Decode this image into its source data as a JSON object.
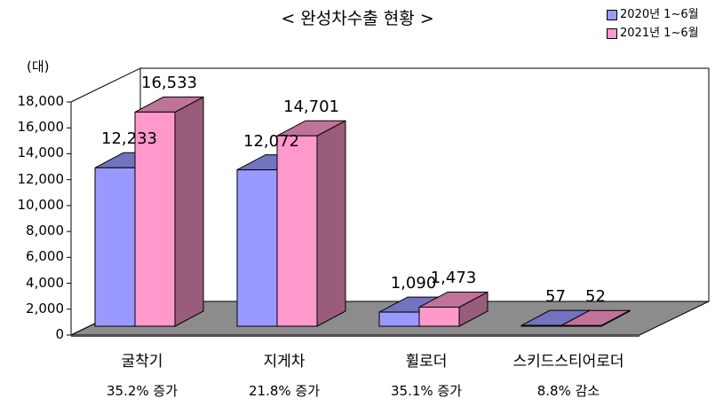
{
  "chart_data": {
    "type": "bar",
    "title": "< 완성차수출 현황 >",
    "unit_label": "(대)",
    "categories": [
      "굴착기",
      "지게차",
      "휠로더",
      "스키드스티어로더"
    ],
    "category_notes": [
      "35.2% 증가",
      "21.8% 증가",
      "35.1% 증가",
      "8.8% 감소"
    ],
    "series": [
      {
        "name": "2020년 1~6월",
        "values": [
          12233,
          12072,
          1090,
          57
        ],
        "color": "#9999ff"
      },
      {
        "name": "2021년 1~6월",
        "values": [
          16533,
          14701,
          1473,
          52
        ],
        "color": "#ff99cc"
      }
    ],
    "value_labels": [
      [
        "12,233",
        "12,072",
        "1,090",
        "57"
      ],
      [
        "16,533",
        "14,701",
        "1,473",
        "52"
      ]
    ],
    "ylim": [
      0,
      18000
    ],
    "yticks": [
      "0",
      "2,000",
      "4,000",
      "6,000",
      "8,000",
      "10,000",
      "12,000",
      "14,000",
      "16,000",
      "18,000"
    ],
    "legend_position": "top-right",
    "grid": false,
    "three_d": true
  }
}
